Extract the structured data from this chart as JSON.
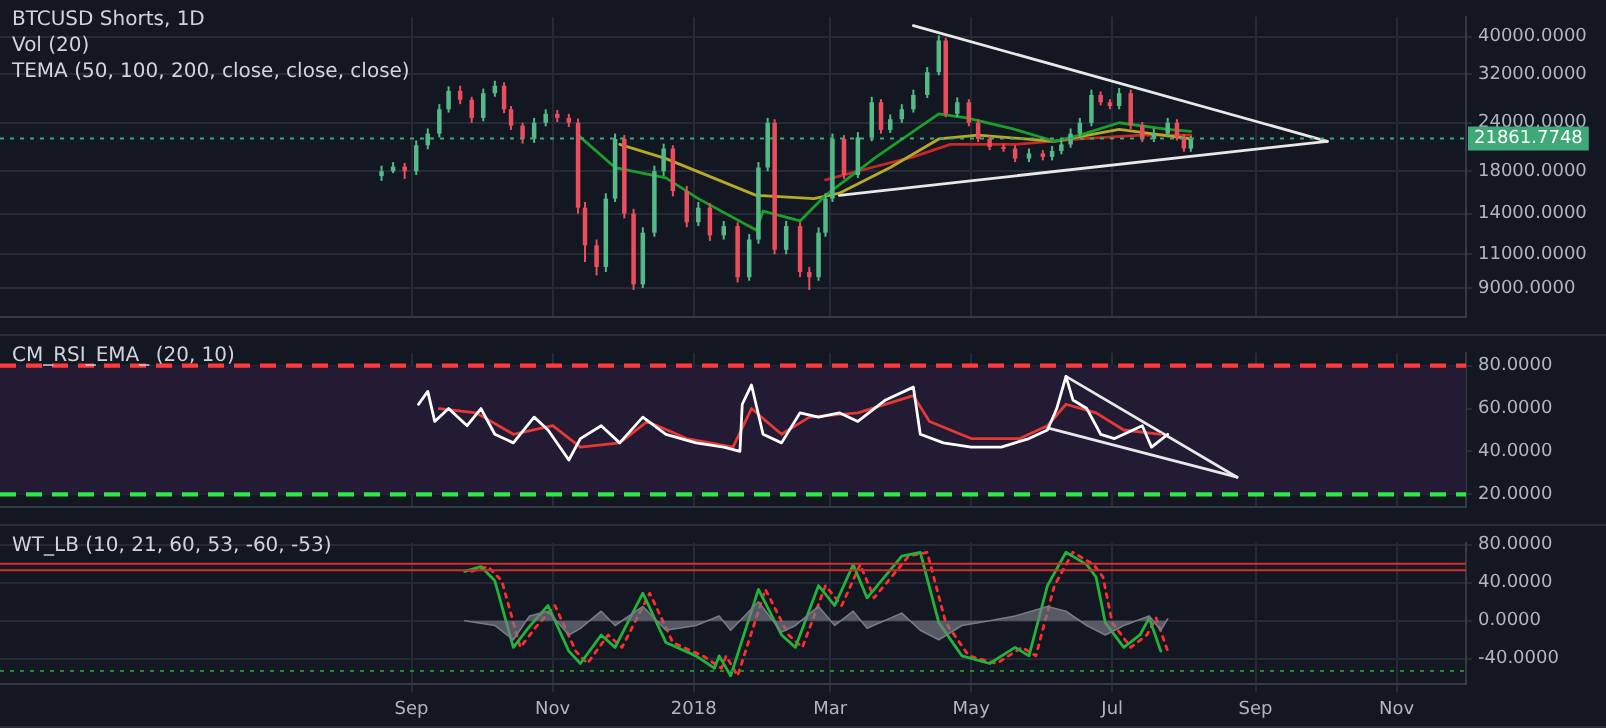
{
  "chart_data": [
    {
      "type": "candlestick",
      "title": "BTCUSD Shorts, 1D",
      "annotations": [
        "Vol (20)",
        "TEMA (50, 100, 200, close, close, close)"
      ],
      "x": [
        "2017-08-19",
        "2017-08-24",
        "2017-08-29",
        "2017-09-03",
        "2017-09-08",
        "2017-09-13",
        "2017-09-17",
        "2017-09-22",
        "2017-09-27",
        "2017-10-02",
        "2017-10-07",
        "2017-10-11",
        "2017-10-14",
        "2017-10-19",
        "2017-10-24",
        "2017-10-29",
        "2017-11-03",
        "2017-11-08",
        "2017-11-12",
        "2017-11-15",
        "2017-11-20",
        "2017-11-24",
        "2017-11-28",
        "2017-12-02",
        "2017-12-06",
        "2017-12-10",
        "2017-12-15",
        "2017-12-19",
        "2017-12-23",
        "2017-12-29",
        "2018-01-03",
        "2018-01-08",
        "2018-01-14",
        "2018-01-20",
        "2018-01-25",
        "2018-01-29",
        "2018-02-02",
        "2018-02-05",
        "2018-02-10",
        "2018-02-16",
        "2018-02-20",
        "2018-02-24",
        "2018-02-27",
        "2018-03-02",
        "2018-03-07",
        "2018-03-13",
        "2018-03-19",
        "2018-03-23",
        "2018-03-27",
        "2018-04-01",
        "2018-04-06",
        "2018-04-12",
        "2018-04-17",
        "2018-04-20",
        "2018-04-25",
        "2018-04-30",
        "2018-05-04",
        "2018-05-09",
        "2018-05-15",
        "2018-05-20",
        "2018-05-26",
        "2018-06-01",
        "2018-06-05",
        "2018-06-09",
        "2018-06-13",
        "2018-06-17",
        "2018-06-22",
        "2018-06-26",
        "2018-06-30",
        "2018-07-04",
        "2018-07-09",
        "2018-07-14",
        "2018-07-19",
        "2018-07-25",
        "2018-07-29",
        "2018-08-01",
        "2018-08-04"
      ],
      "ohlc": [
        [
          17500,
          18600,
          17000,
          18000
        ],
        [
          18000,
          19000,
          17800,
          18500
        ],
        [
          18500,
          18900,
          17200,
          18000
        ],
        [
          18000,
          21600,
          17600,
          21000
        ],
        [
          21000,
          23200,
          20500,
          22500
        ],
        [
          22500,
          26800,
          22000,
          26000
        ],
        [
          26000,
          29800,
          25500,
          29000
        ],
        [
          29000,
          29900,
          26800,
          27500
        ],
        [
          27500,
          28000,
          24000,
          24700
        ],
        [
          24700,
          29400,
          24200,
          28600
        ],
        [
          28600,
          30800,
          28000,
          29900
        ],
        [
          29900,
          30500,
          25400,
          26000
        ],
        [
          26000,
          26500,
          23000,
          23600
        ],
        [
          23600,
          24000,
          21200,
          21800
        ],
        [
          21800,
          24700,
          21300,
          24000
        ],
        [
          24000,
          26000,
          23500,
          25300
        ],
        [
          25300,
          25900,
          24100,
          24700
        ],
        [
          24700,
          25300,
          23400,
          24000
        ],
        [
          24000,
          24600,
          14000,
          14500
        ],
        [
          14500,
          15000,
          10500,
          11600
        ],
        [
          11600,
          12000,
          9700,
          10200
        ],
        [
          10200,
          15800,
          9900,
          15300
        ],
        [
          15300,
          22500,
          15000,
          21800
        ],
        [
          21800,
          22300,
          13600,
          14000
        ],
        [
          14000,
          14400,
          8900,
          9200
        ],
        [
          9200,
          12900,
          9000,
          12500
        ],
        [
          12500,
          18600,
          12200,
          18000
        ],
        [
          18000,
          21200,
          17500,
          20600
        ],
        [
          20600,
          21000,
          15500,
          16000
        ],
        [
          16000,
          16500,
          12900,
          13300
        ],
        [
          13300,
          15000,
          13000,
          14500
        ],
        [
          14500,
          14900,
          11900,
          12300
        ],
        [
          12300,
          13400,
          12000,
          13000
        ],
        [
          13000,
          13300,
          9300,
          9600
        ],
        [
          9600,
          12400,
          9400,
          12000
        ],
        [
          12000,
          19000,
          11700,
          18400
        ],
        [
          18400,
          24700,
          18000,
          24000
        ],
        [
          24000,
          24500,
          11000,
          11300
        ],
        [
          11300,
          13400,
          11000,
          13000
        ],
        [
          13000,
          13300,
          9600,
          9900
        ],
        [
          9900,
          10200,
          8900,
          9600
        ],
        [
          9600,
          12900,
          9400,
          12500
        ],
        [
          12500,
          15800,
          12200,
          15300
        ],
        [
          15300,
          22500,
          15000,
          21800
        ],
        [
          21800,
          22300,
          17200,
          17600
        ],
        [
          17600,
          22700,
          17300,
          22000
        ],
        [
          22000,
          28000,
          21500,
          27100
        ],
        [
          27100,
          27600,
          22500,
          23000
        ],
        [
          23000,
          25200,
          22600,
          24500
        ],
        [
          24500,
          26800,
          24000,
          26000
        ],
        [
          26000,
          29200,
          25500,
          28300
        ],
        [
          28300,
          33400,
          27800,
          32400
        ],
        [
          32400,
          40300,
          31800,
          39100
        ],
        [
          39100,
          39700,
          24800,
          25300
        ],
        [
          25300,
          27900,
          24800,
          27100
        ],
        [
          27100,
          27600,
          23500,
          24000
        ],
        [
          24000,
          24500,
          21400,
          21800
        ],
        [
          21800,
          22200,
          20400,
          20800
        ],
        [
          20800,
          21200,
          20200,
          20600
        ],
        [
          20600,
          21000,
          19000,
          19400
        ],
        [
          19400,
          20600,
          19000,
          20000
        ],
        [
          20000,
          20400,
          19200,
          19600
        ],
        [
          19600,
          20900,
          19200,
          20300
        ],
        [
          20300,
          21700,
          19900,
          21100
        ],
        [
          21100,
          23200,
          20700,
          22500
        ],
        [
          22500,
          24700,
          22000,
          24000
        ],
        [
          24000,
          29200,
          23500,
          28300
        ],
        [
          28300,
          28900,
          26600,
          27100
        ],
        [
          27100,
          27600,
          26000,
          26500
        ],
        [
          26500,
          29500,
          26000,
          28600
        ],
        [
          28600,
          29200,
          23100,
          23600
        ],
        [
          23600,
          24100,
          21400,
          21800
        ],
        [
          21800,
          23200,
          21400,
          22500
        ],
        [
          22500,
          24700,
          22000,
          24000
        ],
        [
          24000,
          24500,
          21600,
          22000
        ],
        [
          22000,
          22400,
          20200,
          20600
        ],
        [
          20600,
          22200,
          20200,
          21862
        ]
      ],
      "colors": [
        "#53b987",
        "#53b987",
        "#eb4d5c",
        "#53b987",
        "#53b987",
        "#53b987",
        "#53b987",
        "#eb4d5c",
        "#eb4d5c",
        "#53b987",
        "#53b987",
        "#eb4d5c",
        "#eb4d5c",
        "#eb4d5c",
        "#53b987",
        "#53b987",
        "#eb4d5c",
        "#eb4d5c",
        "#eb4d5c",
        "#eb4d5c",
        "#eb4d5c",
        "#53b987",
        "#53b987",
        "#eb4d5c",
        "#eb4d5c",
        "#53b987",
        "#53b987",
        "#53b987",
        "#eb4d5c",
        "#eb4d5c",
        "#53b987",
        "#eb4d5c",
        "#53b987",
        "#eb4d5c",
        "#53b987",
        "#53b987",
        "#53b987",
        "#eb4d5c",
        "#53b987",
        "#eb4d5c",
        "#eb4d5c",
        "#53b987",
        "#53b987",
        "#53b987",
        "#eb4d5c",
        "#53b987",
        "#53b987",
        "#eb4d5c",
        "#53b987",
        "#53b987",
        "#53b987",
        "#53b987",
        "#53b987",
        "#eb4d5c",
        "#53b987",
        "#eb4d5c",
        "#eb4d5c",
        "#eb4d5c",
        "#eb4d5c",
        "#eb4d5c",
        "#53b987",
        "#eb4d5c",
        "#53b987",
        "#53b987",
        "#53b987",
        "#53b987",
        "#53b987",
        "#eb4d5c",
        "#eb4d5c",
        "#53b987",
        "#eb4d5c",
        "#eb4d5c",
        "#53b987",
        "#53b987",
        "#eb4d5c",
        "#eb4d5c",
        "#53b987"
      ],
      "series": [
        {
          "type": "line",
          "color": "#1b9e2c",
          "x": [
            "2017-11-12",
            "2017-11-28",
            "2017-12-20",
            "2018-01-03",
            "2018-01-28",
            "2018-01-31",
            "2018-02-16",
            "2018-02-27",
            "2018-03-21",
            "2018-04-06",
            "2018-04-17",
            "2018-04-29",
            "2018-05-20",
            "2018-06-06",
            "2018-06-17",
            "2018-07-04",
            "2018-07-25",
            "2018-08-04"
          ],
          "values": [
            22300,
            18400,
            17300,
            15300,
            12700,
            14200,
            13400,
            15600,
            19600,
            22800,
            25300,
            24700,
            23060,
            21500,
            22300,
            24000,
            23060,
            22800
          ]
        },
        {
          "type": "line",
          "color": "#b5a92a",
          "x": [
            "2017-11-30",
            "2017-12-20",
            "2018-01-28",
            "2018-02-22",
            "2018-03-05",
            "2018-03-27",
            "2018-04-17",
            "2018-05-04",
            "2018-06-06",
            "2018-07-04",
            "2018-08-04"
          ],
          "values": [
            21100,
            19400,
            15600,
            15300,
            15800,
            18400,
            21800,
            22300,
            21500,
            23060,
            21800
          ]
        },
        {
          "type": "line",
          "color": "#c62828",
          "x": [
            "2018-02-27",
            "2018-03-19",
            "2018-04-06",
            "2018-04-22",
            "2018-05-20",
            "2018-06-17",
            "2018-07-14",
            "2018-08-04"
          ],
          "values": [
            17100,
            18400,
            19600,
            21100,
            21100,
            21800,
            22300,
            22300
          ]
        },
        {
          "type": "line",
          "color": "#e8e8e8",
          "x": [
            "2018-04-06",
            "2018-10-02"
          ],
          "values": [
            42700,
            21500
          ]
        },
        {
          "type": "line",
          "color": "#e8e8e8",
          "x": [
            "2018-03-05",
            "2018-10-02"
          ],
          "values": [
            15600,
            21500
          ]
        }
      ],
      "log": true,
      "ylim": [
        7570,
        45000
      ],
      "yticks": [
        {
          "value": 9000,
          "label": "9000.0000"
        },
        {
          "value": 11000,
          "label": "11000.0000"
        },
        {
          "value": 14000,
          "label": "14000.0000"
        },
        {
          "value": 18000,
          "label": "18000.0000"
        },
        {
          "value": 24000,
          "label": "24000.0000"
        },
        {
          "value": 32000,
          "label": "32000.0000"
        },
        {
          "value": 40000,
          "label": "40000.0000"
        }
      ],
      "xlim": [
        "2017-03-07",
        "2018-12-01"
      ],
      "ref_lines": [
        {
          "axis": "y",
          "value": 21861.7748,
          "label": "21861.7748",
          "color": "#3fa877",
          "line_style": "dotted"
        }
      ],
      "xticks": [
        {
          "value": "2017-09-01",
          "label": null
        },
        {
          "value": "2017-11-01",
          "label": null
        },
        {
          "value": "2018-01-01",
          "label": null
        },
        {
          "value": "2018-03-01",
          "label": null
        },
        {
          "value": "2018-05-01",
          "label": null
        },
        {
          "value": "2018-07-01",
          "label": null
        },
        {
          "value": "2018-09-01",
          "label": null
        },
        {
          "value": "2018-11-01",
          "label": null
        }
      ],
      "grid": true,
      "tick_labels": "y"
    },
    {
      "type": "line",
      "title": "CM_RSI_EMA_ (20, 10)",
      "series": [
        {
          "color": "#ffffff",
          "x": [
            "2017-09-04",
            "2017-09-08",
            "2017-09-11",
            "2017-09-17",
            "2017-09-25",
            "2017-10-01",
            "2017-10-07",
            "2017-10-15",
            "2017-10-24",
            "2017-10-30",
            "2017-11-08",
            "2017-11-13",
            "2017-11-22",
            "2017-11-30",
            "2017-12-10",
            "2017-12-20",
            "2018-01-02",
            "2018-01-14",
            "2018-01-21",
            "2018-01-22",
            "2018-01-26",
            "2018-01-31",
            "2018-02-08",
            "2018-02-16",
            "2018-02-24",
            "2018-03-05",
            "2018-03-13",
            "2018-03-25",
            "2018-04-06",
            "2018-04-09",
            "2018-04-19",
            "2018-05-01",
            "2018-05-14",
            "2018-05-26",
            "2018-06-03",
            "2018-06-07",
            "2018-06-11",
            "2018-06-14",
            "2018-06-20",
            "2018-06-26",
            "2018-07-02",
            "2018-07-14",
            "2018-07-18",
            "2018-07-25"
          ],
          "values": [
            62,
            68,
            54,
            60,
            52,
            60,
            48,
            44,
            56,
            50,
            36,
            46,
            52,
            44,
            56,
            48,
            44,
            42,
            40,
            62,
            71,
            48,
            44,
            58,
            56,
            58,
            54,
            64,
            70,
            48,
            44,
            42,
            42,
            46,
            50,
            60,
            75,
            64,
            60,
            48,
            46,
            52,
            42,
            48
          ]
        },
        {
          "color": "#e53935",
          "x": [
            "2017-09-13",
            "2017-09-29",
            "2017-10-15",
            "2017-11-01",
            "2017-11-13",
            "2017-11-30",
            "2017-12-12",
            "2017-12-29",
            "2018-01-18",
            "2018-01-26",
            "2018-02-08",
            "2018-02-20",
            "2018-03-13",
            "2018-04-06",
            "2018-04-13",
            "2018-05-01",
            "2018-05-22",
            "2018-06-03",
            "2018-06-11",
            "2018-06-24",
            "2018-07-06",
            "2018-07-22"
          ],
          "values": [
            60,
            58,
            48,
            52,
            42,
            44,
            54,
            46,
            42,
            60,
            48,
            56,
            58,
            66,
            54,
            46,
            46,
            52,
            62,
            58,
            50,
            48
          ]
        },
        {
          "color": "#e8e8e8",
          "x": [
            "2018-06-11",
            "2018-08-24"
          ],
          "values": [
            75,
            28
          ]
        },
        {
          "color": "#e8e8e8",
          "x": [
            "2018-06-03",
            "2018-08-24"
          ],
          "values": [
            51,
            28
          ]
        }
      ],
      "ylim": [
        14,
        86
      ],
      "yticks": [
        {
          "value": 20,
          "label": "20.0000"
        },
        {
          "value": 40,
          "label": "40.0000"
        },
        {
          "value": 60,
          "label": "60.0000"
        },
        {
          "value": 80,
          "label": "80.0000"
        }
      ],
      "xlim": [
        "2017-03-07",
        "2018-12-01"
      ],
      "xticks": [
        {
          "value": "2017-09-01",
          "label": null
        },
        {
          "value": "2017-11-01",
          "label": null
        },
        {
          "value": "2018-01-01",
          "label": null
        },
        {
          "value": "2018-03-01",
          "label": null
        },
        {
          "value": "2018-05-01",
          "label": null
        },
        {
          "value": "2018-07-01",
          "label": null
        },
        {
          "value": "2018-09-01",
          "label": null
        },
        {
          "value": "2018-11-01",
          "label": null
        }
      ],
      "ref_lines": [
        {
          "axis": "y",
          "value": 80,
          "color": "#ff3b3b",
          "line_style": "dashed"
        },
        {
          "axis": "y",
          "value": 20,
          "color": "#2ee84a",
          "line_style": "dashed"
        }
      ],
      "bands": [
        {
          "axis": "y",
          "from": 20,
          "to": 80,
          "color": "#231a33"
        }
      ],
      "grid": true,
      "tick_labels": "y"
    },
    {
      "type": "line",
      "title": "WT_LB (10, 21, 60, 53, -60, -53)",
      "series": [
        {
          "type": "area",
          "color": "#787b86",
          "x": [
            "2017-09-24",
            "2017-10-07",
            "2017-10-15",
            "2017-10-22",
            "2017-10-30",
            "2017-11-08",
            "2017-11-13",
            "2017-11-22",
            "2017-11-28",
            "2017-12-10",
            "2017-12-20",
            "2018-01-02",
            "2018-01-12",
            "2018-01-17",
            "2018-01-29",
            "2018-02-08",
            "2018-02-14",
            "2018-02-24",
            "2018-03-03",
            "2018-03-11",
            "2018-03-17",
            "2018-04-01",
            "2018-04-09",
            "2018-04-17",
            "2018-04-27",
            "2018-05-09",
            "2018-05-20",
            "2018-06-03",
            "2018-06-11",
            "2018-06-20",
            "2018-06-28",
            "2018-07-06",
            "2018-07-17",
            "2018-07-22",
            "2018-07-25"
          ],
          "values": [
            0,
            -5,
            -20,
            5,
            10,
            -15,
            -8,
            10,
            -5,
            15,
            -10,
            -5,
            5,
            -10,
            20,
            -12,
            -5,
            15,
            -5,
            10,
            -8,
            8,
            -10,
            -20,
            -5,
            0,
            5,
            15,
            10,
            -5,
            -15,
            -5,
            5,
            -10,
            2
          ]
        },
        {
          "color": "#22b33a",
          "x": [
            "2017-09-24",
            "2017-10-01",
            "2017-10-07",
            "2017-10-15",
            "2017-10-22",
            "2017-10-30",
            "2017-11-08",
            "2017-11-13",
            "2017-11-22",
            "2017-11-28",
            "2017-12-10",
            "2017-12-20",
            "2018-01-02",
            "2018-01-10",
            "2018-01-12",
            "2018-01-17",
            "2018-01-29",
            "2018-02-08",
            "2018-02-14",
            "2018-02-24",
            "2018-03-03",
            "2018-03-11",
            "2018-03-17",
            "2018-04-01",
            "2018-04-09",
            "2018-04-17",
            "2018-04-27",
            "2018-05-09",
            "2018-05-20",
            "2018-05-26",
            "2018-06-03",
            "2018-06-11",
            "2018-06-20",
            "2018-06-24",
            "2018-06-28",
            "2018-07-06",
            "2018-07-13",
            "2018-07-17",
            "2018-07-22"
          ],
          "values": [
            52,
            57,
            42,
            -28,
            -6,
            16,
            -32,
            -45,
            -15,
            -28,
            29,
            -23,
            -37,
            -50,
            -37,
            -58,
            33,
            -15,
            -28,
            37,
            16,
            59,
            24,
            68,
            72,
            -2,
            -37,
            -45,
            -28,
            -37,
            37,
            72,
            59,
            46,
            -2,
            -28,
            -15,
            3,
            -32
          ]
        },
        {
          "color": "#ff2d2d",
          "line_style": "dotted",
          "x": [
            "2017-09-27",
            "2017-10-04",
            "2017-10-10",
            "2017-10-18",
            "2017-10-25",
            "2017-11-02",
            "2017-11-11",
            "2017-11-16",
            "2017-11-25",
            "2017-12-01",
            "2017-12-13",
            "2017-12-23",
            "2018-01-05",
            "2018-01-13",
            "2018-01-15",
            "2018-01-20",
            "2018-02-01",
            "2018-02-11",
            "2018-02-17",
            "2018-02-27",
            "2018-03-06",
            "2018-03-14",
            "2018-03-20",
            "2018-04-04",
            "2018-04-12",
            "2018-04-20",
            "2018-04-30",
            "2018-05-12",
            "2018-05-23",
            "2018-05-29",
            "2018-06-06",
            "2018-06-14",
            "2018-06-23",
            "2018-06-27",
            "2018-07-01",
            "2018-07-09",
            "2018-07-16",
            "2018-07-20",
            "2018-07-25"
          ],
          "values": [
            52,
            57,
            42,
            -28,
            -6,
            16,
            -32,
            -45,
            -15,
            -28,
            29,
            -23,
            -37,
            -50,
            -37,
            -58,
            33,
            -15,
            -28,
            37,
            16,
            59,
            24,
            68,
            72,
            -2,
            -37,
            -45,
            -28,
            -37,
            37,
            72,
            59,
            46,
            -2,
            -28,
            -15,
            3,
            -32
          ]
        }
      ],
      "ylim": [
        -67,
        82
      ],
      "yticks": [
        {
          "value": -40,
          "label": "-40.0000"
        },
        {
          "value": 0,
          "label": "0.0000"
        },
        {
          "value": 40,
          "label": "40.0000"
        },
        {
          "value": 80,
          "label": "80.0000"
        }
      ],
      "xlim": [
        "2017-03-07",
        "2018-12-01"
      ],
      "xticks": [
        {
          "value": "2017-09-01",
          "label": "Sep"
        },
        {
          "value": "2017-11-01",
          "label": "Nov"
        },
        {
          "value": "2018-01-01",
          "label": "2018"
        },
        {
          "value": "2018-03-01",
          "label": "Mar"
        },
        {
          "value": "2018-05-01",
          "label": "May"
        },
        {
          "value": "2018-07-01",
          "label": "Jul"
        },
        {
          "value": "2018-09-01",
          "label": "Sep"
        },
        {
          "value": "2018-11-01",
          "label": "Nov"
        }
      ],
      "ref_lines": [
        {
          "axis": "y",
          "value": 60,
          "color": "#d32f2f",
          "line_style": "solid"
        },
        {
          "axis": "y",
          "value": 53,
          "color": "#d32f2f",
          "line_style": "solid"
        },
        {
          "axis": "y",
          "value": -53,
          "color": "#1f8a2e",
          "line_style": "dotted"
        }
      ],
      "grid": true
    }
  ]
}
